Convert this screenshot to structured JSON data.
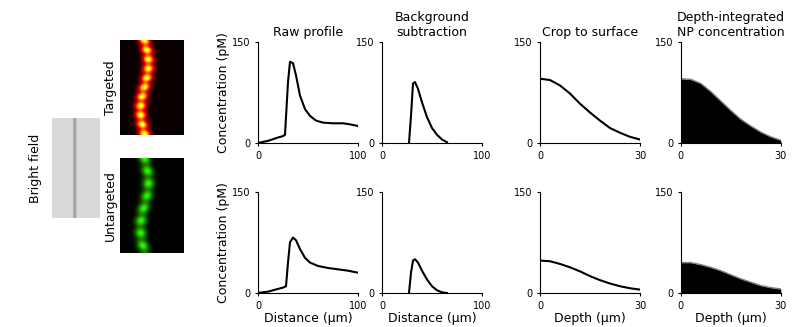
{
  "images": {
    "bright_field": "Bright field",
    "rows": [
      "Targeted",
      "Untargeted"
    ]
  },
  "chart_data": [
    {
      "type": "line",
      "title": "Raw profile",
      "ylabel": "Concentration (pM)",
      "x": [
        0,
        10,
        20,
        25,
        27,
        30,
        32,
        35,
        38,
        42,
        47,
        52,
        58,
        65,
        75,
        85,
        90,
        100
      ],
      "values": [
        0,
        3,
        8,
        10,
        12,
        90,
        120,
        118,
        100,
        70,
        50,
        40,
        33,
        30,
        29,
        29,
        28,
        25
      ],
      "xlim": [
        0,
        100
      ],
      "ylim": [
        0,
        150
      ],
      "xticks": [
        0,
        100
      ],
      "yticks": [
        0,
        150
      ],
      "color": "#000000"
    },
    {
      "type": "line",
      "title": "Background\nsubtraction",
      "x": [
        27,
        29,
        31,
        33,
        36,
        40,
        45,
        50,
        55,
        60,
        65
      ],
      "values": [
        0,
        40,
        88,
        90,
        80,
        60,
        38,
        22,
        12,
        5,
        1
      ],
      "xlim": [
        0,
        100
      ],
      "ylim": [
        0,
        150
      ],
      "xticks": [
        0,
        100
      ],
      "yticks": [
        0,
        150
      ],
      "color": "#000000"
    },
    {
      "type": "line",
      "title": "Crop to surface",
      "x": [
        0,
        3,
        6,
        9,
        12,
        15,
        18,
        21,
        24,
        27,
        30
      ],
      "values": [
        95,
        93,
        85,
        73,
        58,
        45,
        33,
        22,
        15,
        9,
        5
      ],
      "xlim": [
        0,
        30
      ],
      "ylim": [
        0,
        150
      ],
      "xticks": [
        0,
        30
      ],
      "yticks": [
        0,
        150
      ],
      "color": "#000000"
    },
    {
      "type": "area",
      "title": "Depth-integrated\nNP concentration",
      "x": [
        0,
        3,
        6,
        9,
        12,
        15,
        18,
        21,
        24,
        27,
        30
      ],
      "values": [
        95,
        94,
        88,
        76,
        62,
        48,
        35,
        25,
        16,
        9,
        4
      ],
      "xlim": [
        0,
        30
      ],
      "ylim": [
        0,
        150
      ],
      "xticks": [
        0,
        30
      ],
      "yticks": [
        0,
        150
      ],
      "color": "#000000"
    },
    {
      "type": "line",
      "xlabel": "Distance (µm)",
      "ylabel": "Concentration (pM)",
      "x": [
        0,
        10,
        20,
        25,
        28,
        30,
        32,
        35,
        38,
        42,
        47,
        52,
        60,
        70,
        80,
        90,
        100
      ],
      "values": [
        0,
        2,
        6,
        8,
        10,
        45,
        75,
        82,
        78,
        65,
        52,
        45,
        40,
        37,
        35,
        33,
        30
      ],
      "xlim": [
        0,
        100
      ],
      "ylim": [
        0,
        150
      ],
      "xticks": [
        0,
        100
      ],
      "yticks": [
        0,
        150
      ],
      "color": "#000000"
    },
    {
      "type": "line",
      "xlabel": "Distance (µm)",
      "x": [
        27,
        29,
        31,
        33,
        36,
        40,
        45,
        50,
        55,
        60,
        65
      ],
      "values": [
        0,
        30,
        48,
        50,
        45,
        33,
        20,
        10,
        4,
        1,
        0
      ],
      "xlim": [
        0,
        100
      ],
      "ylim": [
        0,
        150
      ],
      "xticks": [
        0,
        100
      ],
      "yticks": [
        0,
        150
      ],
      "color": "#000000"
    },
    {
      "type": "line",
      "xlabel": "Depth (µm)",
      "x": [
        0,
        3,
        6,
        9,
        12,
        15,
        18,
        21,
        24,
        27,
        30
      ],
      "values": [
        48,
        47,
        43,
        38,
        32,
        25,
        19,
        14,
        10,
        7,
        5
      ],
      "xlim": [
        0,
        30
      ],
      "ylim": [
        0,
        150
      ],
      "xticks": [
        0,
        30
      ],
      "yticks": [
        0,
        150
      ],
      "color": "#000000"
    },
    {
      "type": "area",
      "xlabel": "Depth (µm)",
      "x": [
        0,
        3,
        6,
        9,
        12,
        15,
        18,
        21,
        24,
        27,
        30
      ],
      "values": [
        45,
        45,
        42,
        38,
        33,
        27,
        21,
        16,
        11,
        8,
        6
      ],
      "xlim": [
        0,
        30
      ],
      "ylim": [
        0,
        150
      ],
      "xticks": [
        0,
        30
      ],
      "yticks": [
        0,
        150
      ],
      "color": "#000000"
    }
  ]
}
